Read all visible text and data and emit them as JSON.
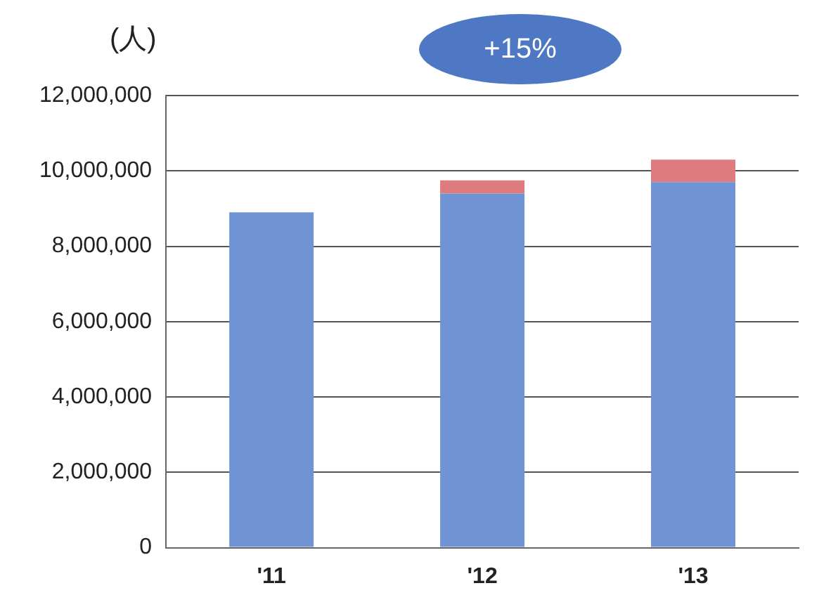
{
  "chart_data": {
    "type": "bar",
    "ylabel": "(人)",
    "annotations": [
      "+15%"
    ],
    "categories": [
      "'11",
      "'12",
      "'13"
    ],
    "stacked": true,
    "series": [
      {
        "color": "#6f93d3",
        "values": [
          8900000,
          9400000,
          9700000
        ]
      },
      {
        "color": "#dd7b7e",
        "values": [
          null,
          350000,
          600000
        ]
      }
    ],
    "ylim": [
      0,
      12000000
    ],
    "yticks": [
      0,
      {
        "value": 2000000,
        "label": "2,000,000"
      },
      {
        "value": 4000000,
        "label": "4,000,000"
      },
      {
        "value": 6000000,
        "label": "6,000,000"
      },
      {
        "value": 8000000,
        "label": "8,000,000"
      },
      {
        "value": 10000000,
        "label": "10,000,000"
      },
      {
        "value": 12000000,
        "label": "12,000,000"
      }
    ],
    "grid": "y",
    "legend": false
  }
}
